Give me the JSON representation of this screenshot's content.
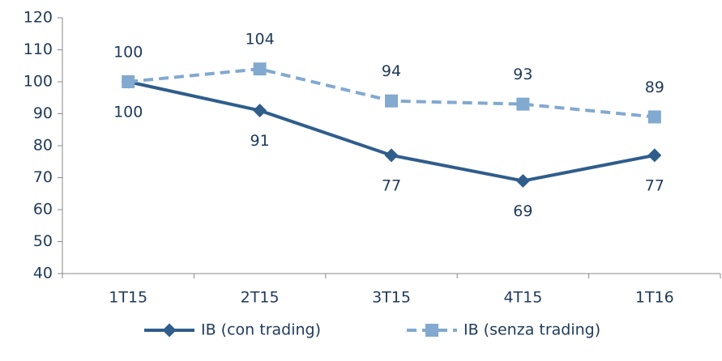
{
  "chart_data": {
    "type": "line",
    "categories": [
      "1T15",
      "2T15",
      "3T15",
      "4T15",
      "1T16"
    ],
    "series": [
      {
        "name": "IB (con trading)",
        "color": "#2f5d8c",
        "values": [
          100,
          91,
          77,
          69,
          77
        ]
      },
      {
        "name": "IB (senza trading)",
        "color": "#82a9cf",
        "values": [
          100,
          104,
          94,
          93,
          89
        ]
      }
    ],
    "ylim": [
      40,
      120
    ],
    "yticks": [
      40,
      50,
      60,
      70,
      80,
      90,
      100,
      110,
      120
    ],
    "grid": false,
    "legend": "bottom"
  }
}
